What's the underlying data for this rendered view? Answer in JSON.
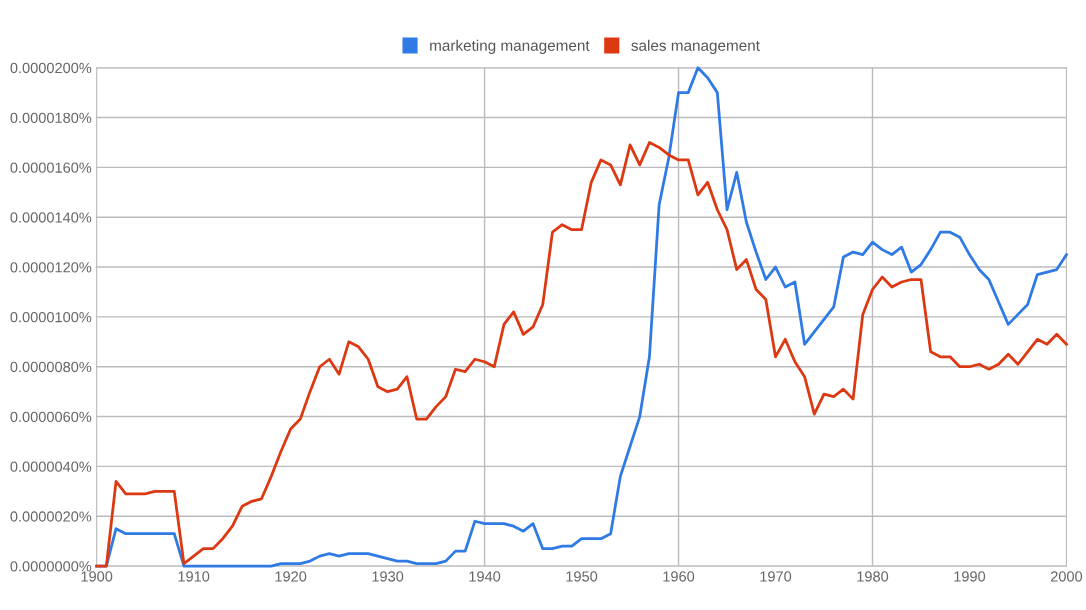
{
  "chart_data": {
    "type": "line",
    "x": [
      1900,
      1901,
      1902,
      1903,
      1904,
      1905,
      1906,
      1907,
      1908,
      1909,
      1910,
      1911,
      1912,
      1913,
      1914,
      1915,
      1916,
      1917,
      1918,
      1919,
      1920,
      1921,
      1922,
      1923,
      1924,
      1925,
      1926,
      1927,
      1928,
      1929,
      1930,
      1931,
      1932,
      1933,
      1934,
      1935,
      1936,
      1937,
      1938,
      1939,
      1940,
      1941,
      1942,
      1943,
      1944,
      1945,
      1946,
      1947,
      1948,
      1949,
      1950,
      1951,
      1952,
      1953,
      1954,
      1955,
      1956,
      1957,
      1958,
      1959,
      1960,
      1961,
      1962,
      1963,
      1964,
      1965,
      1966,
      1967,
      1968,
      1969,
      1970,
      1971,
      1972,
      1973,
      1974,
      1975,
      1976,
      1977,
      1978,
      1979,
      1980,
      1981,
      1982,
      1983,
      1984,
      1985,
      1986,
      1987,
      1988,
      1989,
      1990,
      1991,
      1992,
      1993,
      1994,
      1995,
      1996,
      1997,
      1998,
      1999,
      2000
    ],
    "series": [
      {
        "name": "marketing management",
        "color": "#2f7ae5",
        "values": [
          0,
          0,
          1.5e-06,
          1.3e-06,
          1.3e-06,
          1.3e-06,
          1.3e-06,
          1.3e-06,
          1.3e-06,
          0,
          0,
          0,
          0,
          0,
          0,
          0,
          0,
          0,
          0,
          1e-07,
          1e-07,
          1e-07,
          2e-07,
          4e-07,
          5e-07,
          4e-07,
          5e-07,
          5e-07,
          5e-07,
          4e-07,
          3e-07,
          2e-07,
          2e-07,
          1e-07,
          1e-07,
          1e-07,
          2e-07,
          6e-07,
          6e-07,
          1.8e-06,
          1.7e-06,
          1.7e-06,
          1.7e-06,
          1.6e-06,
          1.4e-06,
          1.7e-06,
          7e-07,
          7e-07,
          8e-07,
          8e-07,
          1.1e-06,
          1.1e-06,
          1.1e-06,
          1.3e-06,
          3.6e-06,
          4.8e-06,
          6e-06,
          8.4e-06,
          1.45e-05,
          1.64e-05,
          1.9e-05,
          1.9e-05,
          2e-05,
          1.96e-05,
          1.9e-05,
          1.43e-05,
          1.58e-05,
          1.38e-05,
          1.26e-05,
          1.15e-05,
          1.2e-05,
          1.12e-05,
          1.14e-05,
          8.9e-06,
          9.4e-06,
          9.9e-06,
          1.04e-05,
          1.24e-05,
          1.26e-05,
          1.25e-05,
          1.3e-05,
          1.27e-05,
          1.25e-05,
          1.28e-05,
          1.18e-05,
          1.21e-05,
          1.27e-05,
          1.34e-05,
          1.34e-05,
          1.32e-05,
          1.25e-05,
          1.19e-05,
          1.15e-05,
          1.06e-05,
          9.7e-06,
          1.01e-05,
          1.05e-05,
          1.17e-05,
          1.18e-05,
          1.19e-05,
          1.25e-05
        ]
      },
      {
        "name": "sales management",
        "color": "#dc3912",
        "values": [
          0,
          0,
          3.4e-06,
          2.9e-06,
          2.9e-06,
          2.9e-06,
          3e-06,
          3e-06,
          3e-06,
          1e-07,
          4e-07,
          7e-07,
          7e-07,
          1.1e-06,
          1.6e-06,
          2.4e-06,
          2.6e-06,
          2.7e-06,
          3.6e-06,
          4.6e-06,
          5.5e-06,
          5.9e-06,
          7e-06,
          8e-06,
          8.3e-06,
          7.7e-06,
          9e-06,
          8.8e-06,
          8.3e-06,
          7.2e-06,
          7e-06,
          7.1e-06,
          7.6e-06,
          5.9e-06,
          5.9e-06,
          6.4e-06,
          6.8e-06,
          7.9e-06,
          7.8e-06,
          8.3e-06,
          8.2e-06,
          8e-06,
          9.7e-06,
          1.02e-05,
          9.3e-06,
          9.6e-06,
          1.05e-05,
          1.34e-05,
          1.37e-05,
          1.35e-05,
          1.35e-05,
          1.54e-05,
          1.63e-05,
          1.61e-05,
          1.53e-05,
          1.69e-05,
          1.61e-05,
          1.7e-05,
          1.68e-05,
          1.65e-05,
          1.63e-05,
          1.63e-05,
          1.49e-05,
          1.54e-05,
          1.43e-05,
          1.35e-05,
          1.19e-05,
          1.23e-05,
          1.11e-05,
          1.07e-05,
          8.4e-06,
          9.1e-06,
          8.2e-06,
          7.6e-06,
          6.1e-06,
          6.9e-06,
          6.8e-06,
          7.1e-06,
          6.7e-06,
          1.01e-05,
          1.11e-05,
          1.16e-05,
          1.12e-05,
          1.14e-05,
          1.15e-05,
          1.15e-05,
          8.6e-06,
          8.4e-06,
          8.4e-06,
          8e-06,
          8e-06,
          8.1e-06,
          7.9e-06,
          8.1e-06,
          8.5e-06,
          8.1e-06,
          8.6e-06,
          9.1e-06,
          8.9e-06,
          9.3e-06,
          8.9e-06
        ]
      }
    ],
    "xlim": [
      1900,
      2000
    ],
    "xticks": [
      1900,
      1910,
      1920,
      1930,
      1940,
      1950,
      1960,
      1970,
      1980,
      1990,
      2000
    ],
    "ylim": [
      0,
      2e-05
    ],
    "yticks": [
      {
        "value": 0,
        "label": "0.0000000%"
      },
      {
        "value": 2e-06,
        "label": "0.0000020%"
      },
      {
        "value": 4e-06,
        "label": "0.0000040%"
      },
      {
        "value": 6e-06,
        "label": "0.0000060%"
      },
      {
        "value": 8e-06,
        "label": "0.0000080%"
      },
      {
        "value": 1e-05,
        "label": "0.0000100%"
      },
      {
        "value": 1.2e-05,
        "label": "0.0000120%"
      },
      {
        "value": 1.4e-05,
        "label": "0.0000140%"
      },
      {
        "value": 1.6e-05,
        "label": "0.0000160%"
      },
      {
        "value": 1.8e-05,
        "label": "0.0000180%"
      },
      {
        "value": 2e-05,
        "label": "0.0000200%"
      }
    ],
    "ref_lines": [
      {
        "axis": "x",
        "value": 1940,
        "color": "#bbbbbb"
      },
      {
        "axis": "x",
        "value": 1960,
        "color": "#bbbbbb"
      },
      {
        "axis": "x",
        "value": 1980,
        "color": "#bbbbbb"
      }
    ],
    "grid": "y",
    "legend": "top",
    "marker": "none",
    "line_style": "solid"
  }
}
